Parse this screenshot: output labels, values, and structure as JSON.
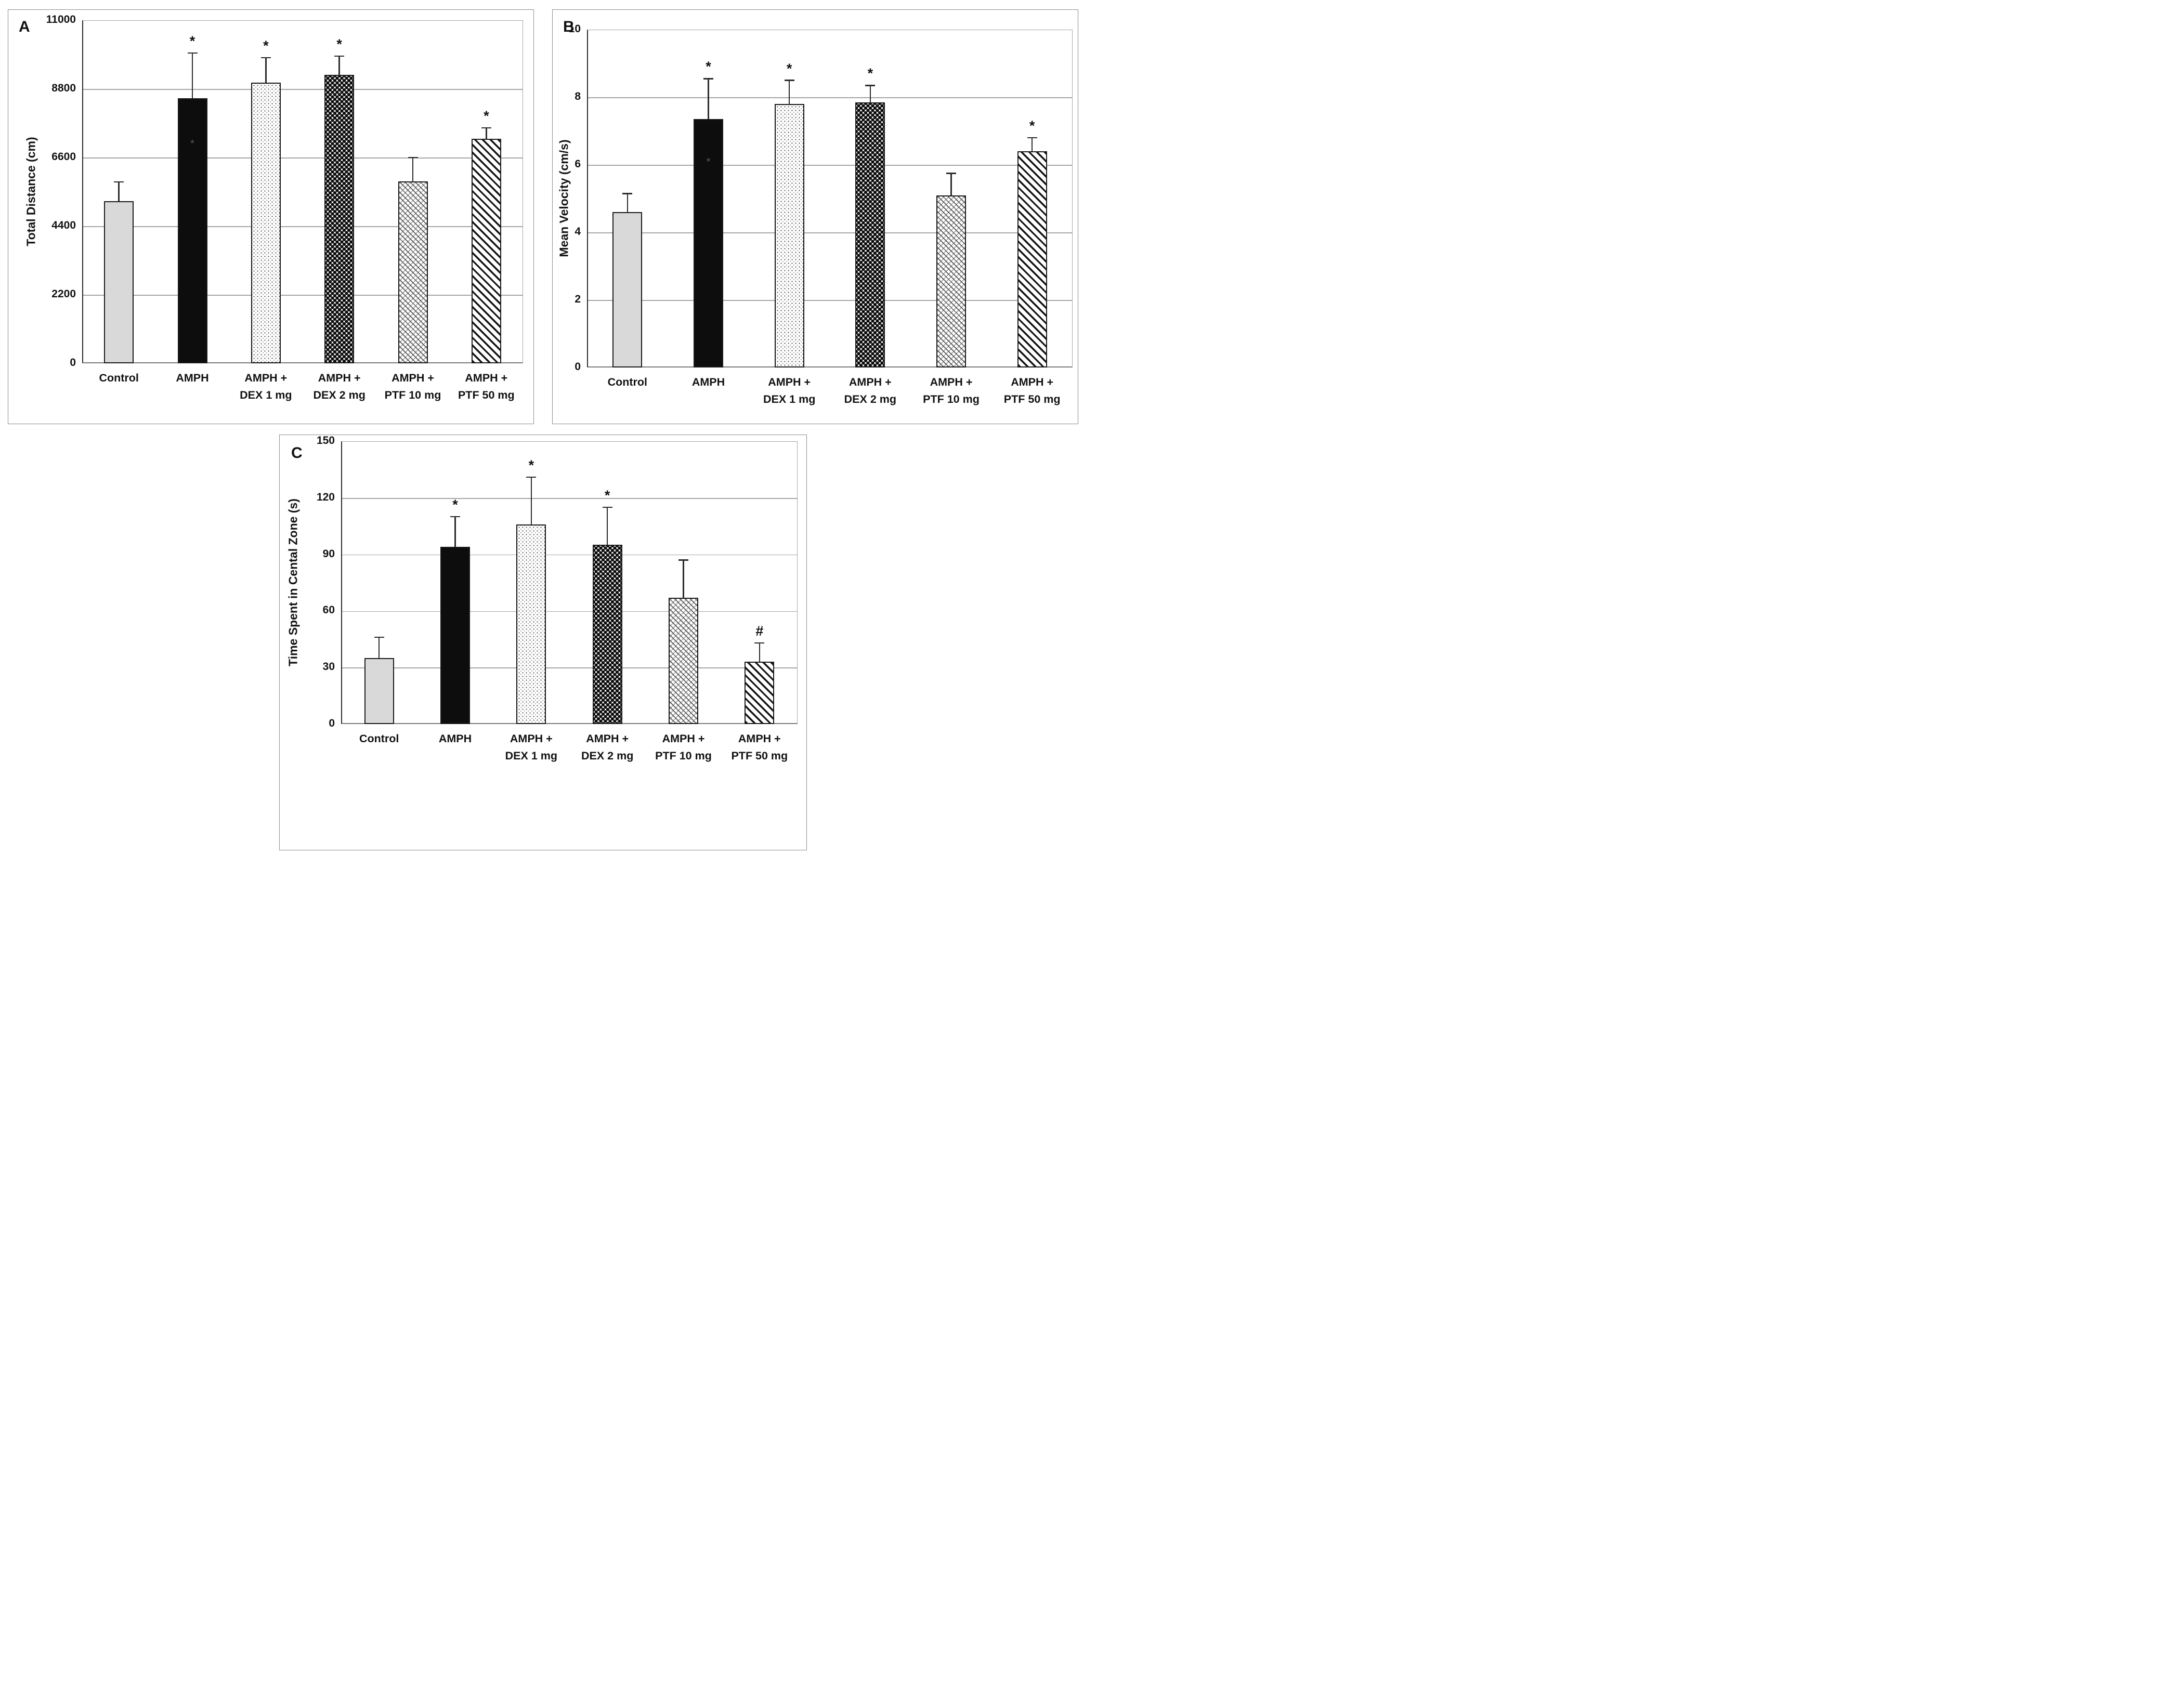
{
  "figure_title": "",
  "colors": {
    "control_bar_fill": "#d9d9d9",
    "black_bar_fill": "#0d0d0d",
    "gridline": "#a6a6a6",
    "axis": "#2b2b2b",
    "panel_border": "#8c8c8c",
    "text": "#111111"
  },
  "chart_data": [
    {
      "type": "bar",
      "panel_letter": "A",
      "title": "",
      "xlabel": "",
      "ylabel": "Total Distance (cm)",
      "ylim": [
        0,
        11000
      ],
      "yticks": [
        0,
        2200,
        4400,
        6600,
        8800,
        11000
      ],
      "grid": true,
      "legend": false,
      "categories": [
        "Control",
        "AMPH",
        "AMPH + DEX 1 mg",
        "AMPH + DEX 2 mg",
        "AMPH + PTF 10 mg",
        "AMPH + PTF 50 mg"
      ],
      "category_label_lines": [
        [
          "Control"
        ],
        [
          "AMPH"
        ],
        [
          "AMPH +",
          "DEX 1 mg"
        ],
        [
          "AMPH +",
          "DEX 2 mg"
        ],
        [
          "AMPH +",
          "PTF 10 mg"
        ],
        [
          "AMPH +",
          "PTF 50 mg"
        ]
      ],
      "values": [
        5200,
        8500,
        9000,
        9250,
        5830,
        7200
      ],
      "error_bar_tops": [
        5820,
        9950,
        9800,
        9850,
        6600,
        7550
      ],
      "sig_markers": [
        "",
        "*",
        "*",
        "*",
        "",
        "*"
      ],
      "inner_bar_asterisk": [
        false,
        true,
        false,
        false,
        false,
        false
      ],
      "bar_patterns": [
        "light-gray-solid",
        "black-solid",
        "fine-stipple",
        "dense-diamond-dots",
        "diagonal-basketweave",
        "bold-diagonal-stripes"
      ]
    },
    {
      "type": "bar",
      "panel_letter": "B",
      "title": "",
      "xlabel": "",
      "ylabel": "Mean Velocity (cm/s)",
      "ylim": [
        0,
        10
      ],
      "yticks": [
        0,
        2,
        4,
        6,
        8,
        10
      ],
      "grid": true,
      "legend": false,
      "categories": [
        "Control",
        "AMPH",
        "AMPH + DEX 1 mg",
        "AMPH + DEX 2 mg",
        "AMPH + PTF 10 mg",
        "AMPH + PTF 50 mg"
      ],
      "category_label_lines": [
        [
          "Control"
        ],
        [
          "AMPH"
        ],
        [
          "AMPH +",
          "DEX 1 mg"
        ],
        [
          "AMPH +",
          "DEX 2 mg"
        ],
        [
          "AMPH +",
          "PTF 10 mg"
        ],
        [
          "AMPH +",
          "PTF 50 mg"
        ]
      ],
      "values": [
        4.6,
        7.35,
        7.8,
        7.85,
        5.1,
        6.4
      ],
      "error_bar_tops": [
        5.15,
        8.55,
        8.5,
        8.35,
        5.75,
        6.8
      ],
      "sig_markers": [
        "",
        "*",
        "*",
        "*",
        "",
        "*"
      ],
      "inner_bar_asterisk": [
        false,
        true,
        false,
        false,
        false,
        false
      ],
      "bar_patterns": [
        "light-gray-solid",
        "black-solid",
        "fine-stipple",
        "dense-diamond-dots",
        "diagonal-basketweave",
        "bold-diagonal-stripes"
      ]
    },
    {
      "type": "bar",
      "panel_letter": "C",
      "title": "",
      "xlabel": "",
      "ylabel": "Time Spent in Cental Zone (s)",
      "ylim": [
        0,
        150
      ],
      "yticks": [
        0,
        30,
        60,
        90,
        120,
        150
      ],
      "grid": true,
      "legend": false,
      "categories": [
        "Control",
        "AMPH",
        "AMPH + DEX 1 mg",
        "AMPH + DEX 2 mg",
        "AMPH + PTF 10 mg",
        "AMPH + PTF 50 mg"
      ],
      "category_label_lines": [
        [
          "Control"
        ],
        [
          "AMPH"
        ],
        [
          "AMPH +",
          "DEX 1 mg"
        ],
        [
          "AMPH +",
          "DEX 2 mg"
        ],
        [
          "AMPH +",
          "PTF 10 mg"
        ],
        [
          "AMPH +",
          "PTF 50 mg"
        ]
      ],
      "values": [
        35,
        94,
        106,
        95,
        67,
        33
      ],
      "error_bar_tops": [
        46,
        110,
        131,
        115,
        87,
        43
      ],
      "sig_markers": [
        "",
        "*",
        "*",
        "*",
        "",
        "#"
      ],
      "inner_bar_asterisk": [
        false,
        false,
        false,
        false,
        false,
        false
      ],
      "bar_patterns": [
        "light-gray-solid",
        "black-solid",
        "fine-stipple",
        "dense-diamond-dots",
        "diagonal-basketweave",
        "bold-diagonal-stripes"
      ]
    }
  ]
}
